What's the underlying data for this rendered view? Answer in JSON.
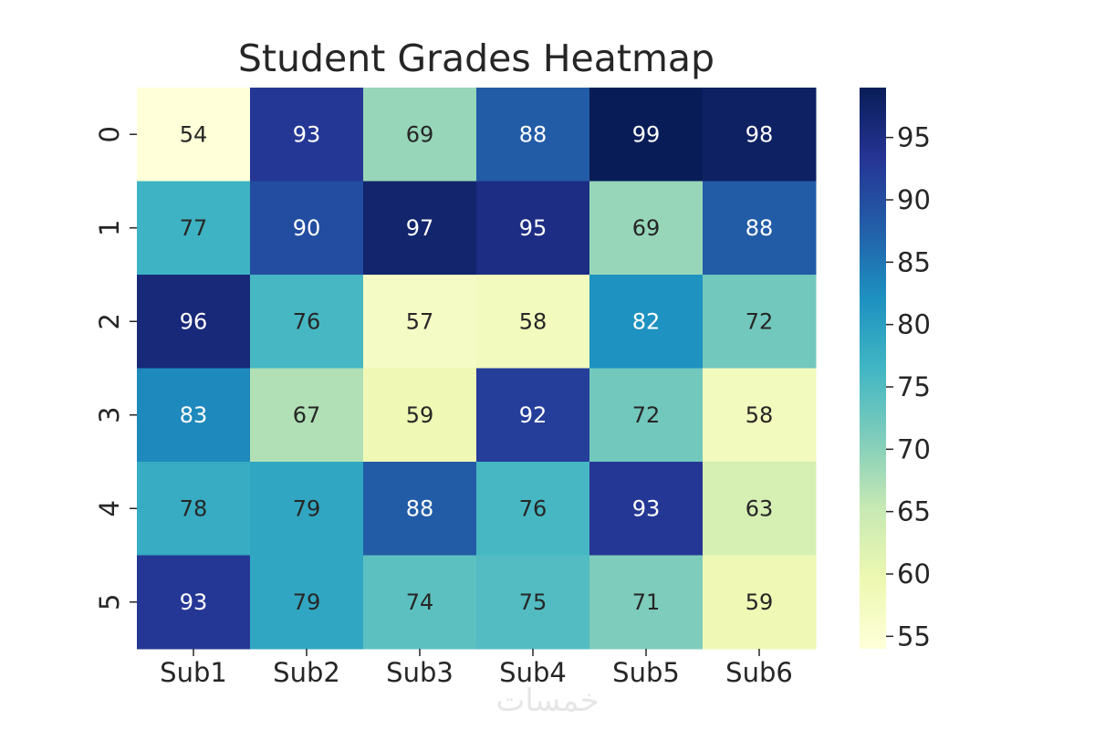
{
  "chart_data": {
    "type": "heatmap",
    "title": "Student Grades Heatmap",
    "xlabel": "",
    "ylabel": "",
    "x_categories": [
      "Sub1",
      "Sub2",
      "Sub3",
      "Sub4",
      "Sub5",
      "Sub6"
    ],
    "y_categories": [
      "0",
      "1",
      "2",
      "3",
      "4",
      "5"
    ],
    "values": [
      [
        54,
        93,
        69,
        88,
        99,
        98
      ],
      [
        77,
        90,
        97,
        95,
        69,
        88
      ],
      [
        96,
        76,
        57,
        58,
        82,
        72
      ],
      [
        83,
        67,
        59,
        92,
        72,
        58
      ],
      [
        78,
        79,
        88,
        76,
        93,
        63
      ],
      [
        93,
        79,
        74,
        75,
        71,
        59
      ]
    ],
    "colormap": "YlGnBu",
    "colorbar": {
      "vmin": 54,
      "vmax": 99,
      "ticks": [
        55,
        60,
        65,
        70,
        75,
        80,
        85,
        90,
        95
      ]
    },
    "annotations": true
  },
  "watermark": "خمسات"
}
